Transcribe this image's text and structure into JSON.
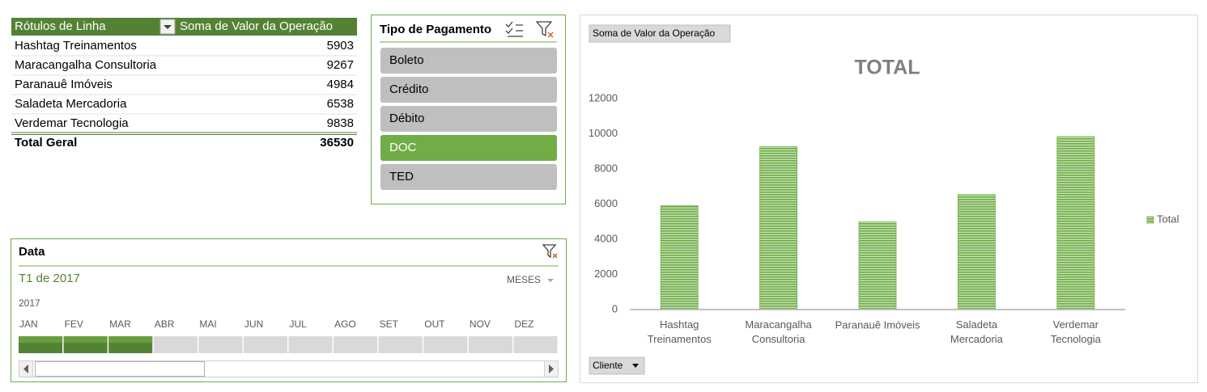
{
  "pivot_table": {
    "header": [
      "Rótulos de Linha",
      "Soma de Valor da Operação"
    ],
    "rows": [
      [
        "Hashtag Treinamentos",
        5903
      ],
      [
        "Maracangalha Consultoria",
        9267
      ],
      [
        "Paranauê Imóveis",
        4984
      ],
      [
        "Saladeta Mercadoria",
        6538
      ],
      [
        "Verdemar Tecnologia",
        9838
      ]
    ],
    "total": [
      "Total Geral",
      36530
    ]
  },
  "slicer": {
    "title": "Tipo de Pagamento",
    "items": [
      "Boleto",
      "Crédito",
      "Débito",
      "DOC",
      "TED"
    ],
    "selected": [
      3
    ]
  },
  "timeline": {
    "title": "Data",
    "period": "T1 de 2017",
    "level": "MESES",
    "year": "2017",
    "months": [
      "JAN",
      "FEV",
      "MAR",
      "ABR",
      "MAI",
      "JUN",
      "JUL",
      "AGO",
      "SET",
      "OUT",
      "NOV",
      "DEZ"
    ],
    "selected": [
      0,
      1,
      2
    ]
  },
  "chart_data": {
    "type": "bar",
    "title": "TOTAL",
    "value_field_button": "Soma de Valor da Operação",
    "axis_field_button": "Cliente",
    "categories": [
      "Hashtag Treinamentos",
      "Maracangalha Consultoria",
      "Paranauê Imóveis",
      "Saladeta Mercadoria",
      "Verdemar Tecnologia"
    ],
    "series": [
      {
        "name": "Total",
        "color": "#70ad47",
        "values": [
          5903,
          9267,
          4984,
          6538,
          9838
        ]
      }
    ],
    "ylim": [
      0,
      12000
    ],
    "yticks": [
      0,
      2000,
      4000,
      6000,
      8000,
      10000,
      12000
    ],
    "grid": false,
    "legend": "right"
  }
}
